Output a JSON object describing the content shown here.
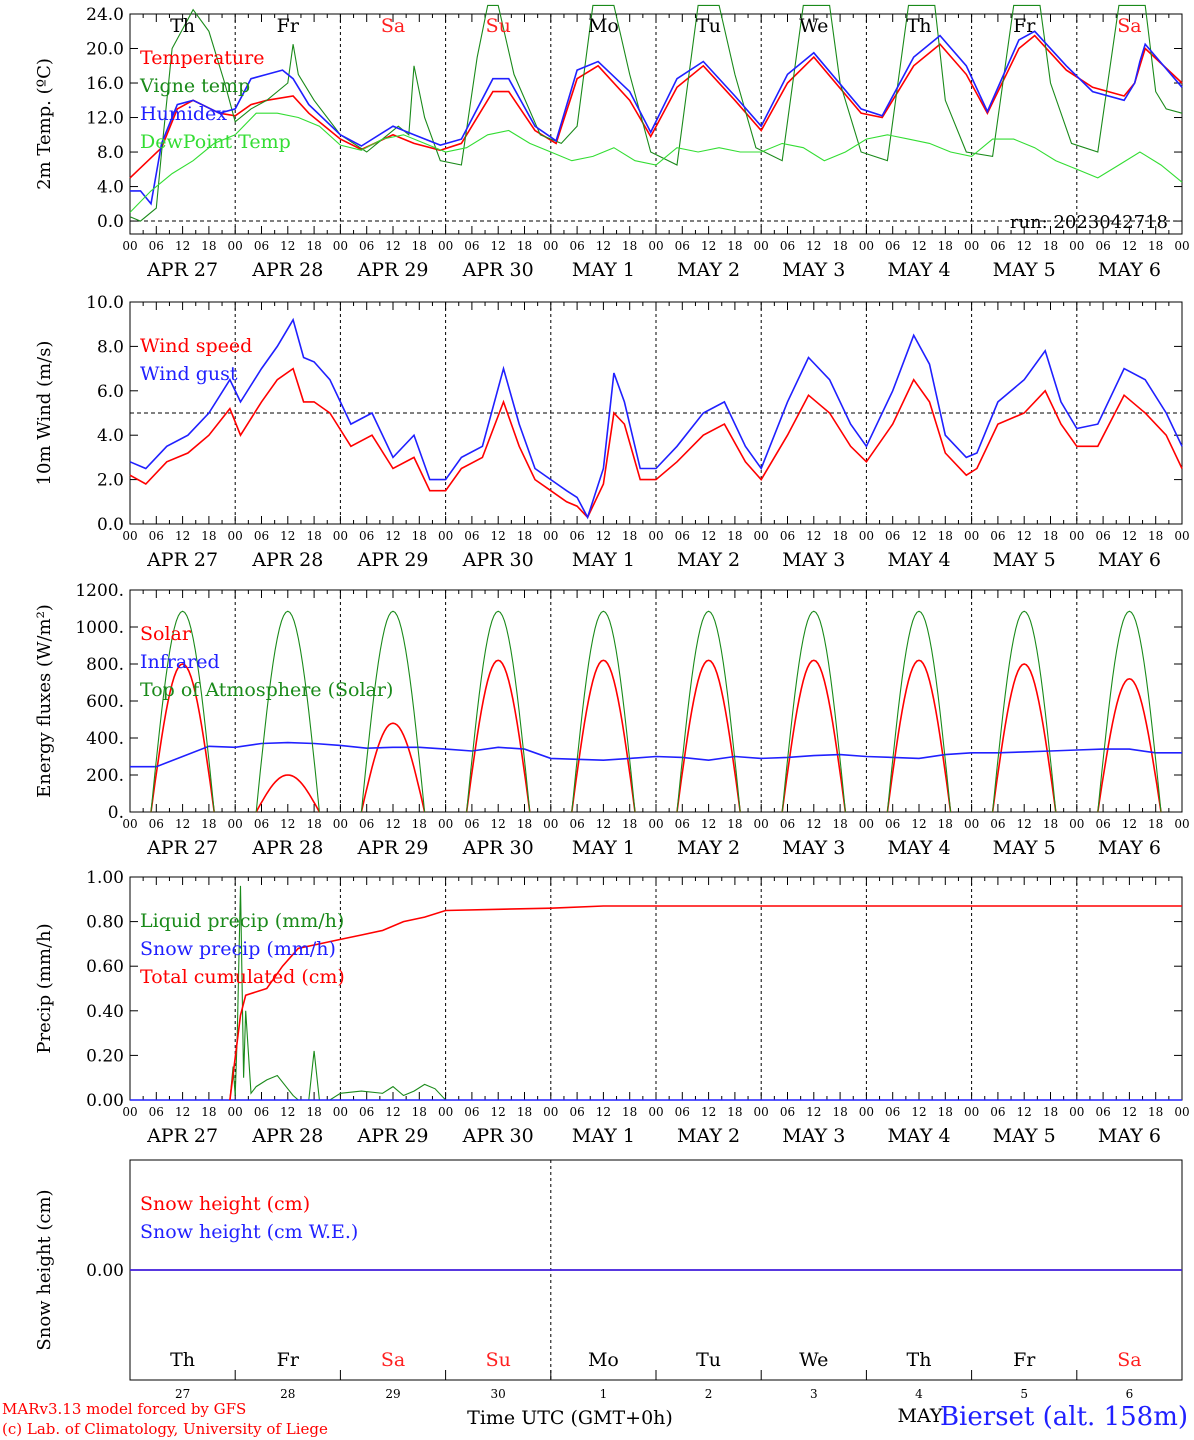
{
  "credits": {
    "line1": "MARv3.13 model forced by GFS",
    "line2": "(c) Lab. of Climatology, University of Liege"
  },
  "station": "Bierset (alt. 158m)",
  "run_label": "run: 2023042718",
  "days": {
    "weekdays": [
      "Th",
      "Fr",
      "Sa",
      "Su",
      "Mo",
      "Tu",
      "We",
      "Th",
      "Fr",
      "Sa"
    ],
    "weekend_flags": [
      false,
      false,
      true,
      true,
      false,
      false,
      false,
      false,
      false,
      true
    ],
    "date_labels": [
      "APR 27",
      "APR 28",
      "APR 29",
      "APR 30",
      "MAY  1",
      "MAY  2",
      "MAY  3",
      "MAY  4",
      "MAY  5",
      "MAY  6"
    ],
    "day_numbers": [
      "27",
      "28",
      "29",
      "30",
      "1",
      "2",
      "3",
      "4",
      "5",
      "6"
    ],
    "hour_ticks": [
      "00",
      "06",
      "12",
      "18"
    ],
    "final_tick": "00"
  },
  "colors": {
    "red": "#ff0000",
    "blue": "#2020ff",
    "green": "#1a8a1a",
    "lightgreen": "#33dd33",
    "purple": "#7030a0",
    "weekend": "#ff2020"
  },
  "chart_data": [
    {
      "id": "temp",
      "type": "line",
      "ylabel": "2m Temp. (ºC)",
      "ylim": [
        -1.5,
        24
      ],
      "yticks": [
        0,
        4,
        8,
        12,
        16,
        20,
        24
      ],
      "ytick_labels": [
        "0.0",
        "4.0",
        "8.0",
        "12.0",
        "16.0",
        "20.0",
        "24.0"
      ],
      "reference_line": 0,
      "x_unit": "days since APR 27 00 UTC",
      "series": [
        {
          "name": "Temperature",
          "color": "red",
          "x": [
            0,
            0.3,
            0.45,
            0.6,
            0.85,
            1.0,
            1.15,
            1.3,
            1.55,
            1.7,
            2.0,
            2.2,
            2.5,
            2.7,
            2.95,
            3.15,
            3.45,
            3.6,
            3.85,
            4.05,
            4.25,
            4.45,
            4.75,
            4.95,
            5.2,
            5.45,
            5.75,
            6.0,
            6.25,
            6.5,
            6.95,
            7.15,
            7.45,
            7.7,
            7.95,
            8.15,
            8.45,
            8.6,
            8.9,
            9.15,
            9.45,
            9.55,
            9.6,
            9.65,
            10.0
          ],
          "y": [
            5.0,
            8.5,
            13.0,
            14.0,
            12.5,
            12.2,
            13.5,
            14.0,
            14.5,
            12.5,
            9.5,
            8.3,
            10.0,
            9.0,
            8.2,
            9.0,
            15.0,
            15.0,
            10.5,
            9.0,
            16.5,
            18.0,
            14.0,
            9.8,
            15.5,
            18.0,
            14.0,
            10.5,
            16.0,
            19.0,
            12.5,
            12.0,
            18.0,
            20.5,
            17.0,
            12.5,
            20.0,
            21.5,
            17.5,
            15.5,
            14.5,
            16.0,
            18.0,
            20.0,
            16.0
          ]
        },
        {
          "name": "Vigne temp",
          "color": "green",
          "x": [
            0,
            0.1,
            0.25,
            0.3,
            0.4,
            0.6,
            0.75,
            0.9,
            1.0,
            1.15,
            1.3,
            1.5,
            1.55,
            1.6,
            1.75,
            2.0,
            2.25,
            2.4,
            2.55,
            2.65,
            2.7,
            2.8,
            2.95,
            3.15,
            3.3,
            3.4,
            3.5,
            3.65,
            3.9,
            4.1,
            4.25,
            4.4,
            4.6,
            4.75,
            4.95,
            5.2,
            5.4,
            5.6,
            5.75,
            5.95,
            6.2,
            6.4,
            6.65,
            6.75,
            6.95,
            7.2,
            7.4,
            7.65,
            7.75,
            7.95,
            8.2,
            8.4,
            8.65,
            8.75,
            8.95,
            9.2,
            9.4,
            9.65,
            9.75,
            9.85,
            10.0
          ],
          "y": [
            0.5,
            0.0,
            1.5,
            8.0,
            20.0,
            24.5,
            22.0,
            16.0,
            11.5,
            13.0,
            14.0,
            16.0,
            20.5,
            17.0,
            14.0,
            10.0,
            8.0,
            9.5,
            11.0,
            10.0,
            18.0,
            12.0,
            7.0,
            6.5,
            19.0,
            25.0,
            25.0,
            17.0,
            10.0,
            9.0,
            11.0,
            25.0,
            25.0,
            17.0,
            8.0,
            6.5,
            25.0,
            25.0,
            17.0,
            8.5,
            7.0,
            25.0,
            25.0,
            16.0,
            8.0,
            7.0,
            25.0,
            25.0,
            14.0,
            8.0,
            7.5,
            25.0,
            25.0,
            16.0,
            9.0,
            8.0,
            25.0,
            25.0,
            15.0,
            13.0,
            12.5
          ]
        },
        {
          "name": "Humidex",
          "color": "blue",
          "x": [
            0,
            0.1,
            0.2,
            0.3,
            0.45,
            0.6,
            0.85,
            1.0,
            1.15,
            1.3,
            1.45,
            1.55,
            1.7,
            2.0,
            2.2,
            2.5,
            2.7,
            2.95,
            3.15,
            3.45,
            3.6,
            3.85,
            4.05,
            4.25,
            4.45,
            4.75,
            4.95,
            5.2,
            5.45,
            5.75,
            6.0,
            6.25,
            6.5,
            6.95,
            7.15,
            7.45,
            7.7,
            7.95,
            8.15,
            8.45,
            8.6,
            8.9,
            9.15,
            9.45,
            9.55,
            9.6,
            9.65,
            10.0
          ],
          "y": [
            3.5,
            3.5,
            2.0,
            9.0,
            13.5,
            14.0,
            12.5,
            13.0,
            16.5,
            17.0,
            17.5,
            16.5,
            13.5,
            10.0,
            8.7,
            11.0,
            10.0,
            8.8,
            9.5,
            16.5,
            16.5,
            11.0,
            9.3,
            17.5,
            18.5,
            15.0,
            10.3,
            16.5,
            18.5,
            14.5,
            11.0,
            17.0,
            19.5,
            13.0,
            12.2,
            19.0,
            21.5,
            18.0,
            12.7,
            21.0,
            22.0,
            18.0,
            15.0,
            14.0,
            16.0,
            18.5,
            20.5,
            15.5
          ]
        },
        {
          "name": "DewPoint Temp",
          "color": "lightgreen",
          "x": [
            0,
            0.2,
            0.4,
            0.6,
            0.8,
            1.0,
            1.2,
            1.4,
            1.6,
            1.8,
            2.0,
            2.2,
            2.4,
            2.6,
            2.8,
            3.0,
            3.2,
            3.4,
            3.6,
            3.8,
            4.0,
            4.2,
            4.4,
            4.6,
            4.8,
            5.0,
            5.2,
            5.4,
            5.6,
            5.8,
            6.0,
            6.2,
            6.4,
            6.6,
            6.8,
            7.0,
            7.2,
            7.4,
            7.6,
            7.8,
            8.0,
            8.2,
            8.4,
            8.6,
            8.8,
            9.0,
            9.2,
            9.4,
            9.6,
            9.8,
            10.0
          ],
          "y": [
            1.0,
            3.5,
            5.5,
            7.0,
            9.0,
            10.0,
            12.5,
            12.5,
            12.0,
            11.0,
            8.8,
            8.2,
            9.5,
            10.0,
            9.0,
            8.0,
            8.5,
            10.0,
            10.5,
            9.0,
            8.0,
            7.0,
            7.5,
            8.5,
            7.0,
            6.5,
            8.5,
            8.0,
            8.5,
            8.0,
            8.0,
            9.0,
            8.5,
            7.0,
            8.0,
            9.5,
            10.0,
            9.5,
            9.0,
            8.0,
            7.5,
            9.5,
            9.5,
            8.5,
            7.0,
            6.0,
            5.0,
            6.5,
            8.0,
            6.5,
            4.5
          ]
        }
      ]
    },
    {
      "id": "wind",
      "type": "line",
      "ylabel": "10m Wind (m/s)",
      "ylim": [
        0,
        10
      ],
      "yticks": [
        0,
        2,
        4,
        6,
        8,
        10
      ],
      "ytick_labels": [
        "0.0",
        "2.0",
        "4.0",
        "6.0",
        "8.0",
        "10.0"
      ],
      "reference_line": 5,
      "x_unit": "days since APR 27 00 UTC",
      "series": [
        {
          "name": "Wind speed",
          "color": "red",
          "x": [
            0,
            0.15,
            0.35,
            0.55,
            0.75,
            0.95,
            1.05,
            1.25,
            1.4,
            1.55,
            1.65,
            1.75,
            1.9,
            2.1,
            2.3,
            2.5,
            2.7,
            2.85,
            3.0,
            3.15,
            3.35,
            3.55,
            3.7,
            3.85,
            4.0,
            4.15,
            4.25,
            4.35,
            4.5,
            4.6,
            4.7,
            4.85,
            5.0,
            5.2,
            5.45,
            5.65,
            5.85,
            6.0,
            6.25,
            6.45,
            6.65,
            6.85,
            7.0,
            7.25,
            7.45,
            7.6,
            7.75,
            7.95,
            8.05,
            8.25,
            8.5,
            8.7,
            8.85,
            9.0,
            9.2,
            9.45,
            9.65,
            9.85,
            10.0
          ],
          "y": [
            2.2,
            1.8,
            2.8,
            3.2,
            4.0,
            5.2,
            4.0,
            5.5,
            6.5,
            7.0,
            5.5,
            5.5,
            5.0,
            3.5,
            4.0,
            2.5,
            3.0,
            1.5,
            1.5,
            2.5,
            3.0,
            5.5,
            3.5,
            2.0,
            1.5,
            1.0,
            0.8,
            0.3,
            1.8,
            5.0,
            4.5,
            2.0,
            2.0,
            2.8,
            4.0,
            4.5,
            2.8,
            2.0,
            4.0,
            5.8,
            5.0,
            3.5,
            2.8,
            4.5,
            6.5,
            5.5,
            3.2,
            2.2,
            2.5,
            4.5,
            5.0,
            6.0,
            4.5,
            3.5,
            3.5,
            5.8,
            5.0,
            4.0,
            2.5
          ]
        },
        {
          "name": "Wind gust",
          "color": "blue",
          "x": [
            0,
            0.15,
            0.35,
            0.55,
            0.75,
            0.95,
            1.05,
            1.25,
            1.4,
            1.55,
            1.65,
            1.75,
            1.9,
            2.1,
            2.3,
            2.5,
            2.7,
            2.85,
            3.0,
            3.15,
            3.35,
            3.55,
            3.7,
            3.85,
            4.0,
            4.15,
            4.25,
            4.35,
            4.5,
            4.6,
            4.7,
            4.85,
            5.0,
            5.2,
            5.45,
            5.65,
            5.85,
            6.0,
            6.25,
            6.45,
            6.65,
            6.85,
            7.0,
            7.25,
            7.45,
            7.6,
            7.75,
            7.95,
            8.05,
            8.25,
            8.5,
            8.7,
            8.85,
            9.0,
            9.2,
            9.45,
            9.65,
            9.85,
            10.0
          ],
          "y": [
            2.8,
            2.5,
            3.5,
            4.0,
            5.0,
            6.5,
            5.5,
            7.0,
            8.0,
            9.2,
            7.5,
            7.3,
            6.5,
            4.5,
            5.0,
            3.0,
            4.0,
            2.0,
            2.0,
            3.0,
            3.5,
            7.0,
            4.5,
            2.5,
            2.0,
            1.5,
            1.2,
            0.3,
            2.5,
            6.8,
            5.5,
            2.5,
            2.5,
            3.5,
            5.0,
            5.5,
            3.5,
            2.5,
            5.5,
            7.5,
            6.5,
            4.5,
            3.5,
            6.0,
            8.5,
            7.2,
            4.0,
            3.0,
            3.2,
            5.5,
            6.5,
            7.8,
            5.5,
            4.3,
            4.5,
            7.0,
            6.5,
            5.0,
            3.5
          ]
        }
      ]
    },
    {
      "id": "energy",
      "type": "line",
      "ylabel": "Energy fluxes (W/m²)",
      "ylim": [
        0,
        1200
      ],
      "yticks": [
        0,
        200,
        400,
        600,
        800,
        1000,
        1200
      ],
      "ytick_labels": [
        "0.",
        "200.",
        "400.",
        "600.",
        "800.",
        "1000.",
        "1200."
      ],
      "x_unit": "days since APR 27 00 UTC",
      "series": [
        {
          "name": "Solar",
          "color": "red",
          "peaks": [
            800,
            200,
            480,
            820,
            820,
            820,
            820,
            820,
            800,
            720
          ]
        },
        {
          "name": "Infrared",
          "color": "blue",
          "x": [
            0,
            0.25,
            0.5,
            0.75,
            1.0,
            1.25,
            1.5,
            1.75,
            2.0,
            2.25,
            2.5,
            2.75,
            3.0,
            3.25,
            3.5,
            3.75,
            4.0,
            4.25,
            4.5,
            4.75,
            5.0,
            5.25,
            5.5,
            5.75,
            6.0,
            6.25,
            6.5,
            6.75,
            7.0,
            7.25,
            7.5,
            7.75,
            8.0,
            8.25,
            8.5,
            8.75,
            9.0,
            9.25,
            9.5,
            9.75,
            10.0
          ],
          "y": [
            245,
            245,
            300,
            355,
            350,
            370,
            375,
            370,
            360,
            345,
            350,
            350,
            340,
            330,
            350,
            340,
            290,
            285,
            280,
            290,
            300,
            295,
            280,
            300,
            290,
            295,
            305,
            310,
            300,
            295,
            290,
            310,
            320,
            320,
            325,
            330,
            335,
            340,
            340,
            320,
            320
          ]
        },
        {
          "name": "Top of Atmosphere (Solar)",
          "color": "green",
          "peak": 1085
        }
      ]
    },
    {
      "id": "precip",
      "type": "line",
      "ylabel": "Precip (mm/h)",
      "ylim": [
        0,
        1.0
      ],
      "yticks": [
        0,
        0.2,
        0.4,
        0.6,
        0.8,
        1.0
      ],
      "ytick_labels": [
        "0.00",
        "0.20",
        "0.40",
        "0.60",
        "0.80",
        "1.00"
      ],
      "x_unit": "days since APR 27 00 UTC",
      "series": [
        {
          "name": "Liquid precip (mm/h)",
          "color": "green",
          "x": [
            0.95,
            0.98,
            1.0,
            1.02,
            1.05,
            1.08,
            1.1,
            1.15,
            1.2,
            1.3,
            1.4,
            1.5,
            1.55,
            1.6,
            1.7,
            1.75,
            1.8,
            1.85,
            1.9,
            2.0,
            2.2,
            2.4,
            2.5,
            2.6,
            2.7,
            2.8,
            2.9,
            3.0,
            3.05
          ],
          "y": [
            0,
            0.15,
            0.02,
            0.3,
            0.96,
            0.1,
            0.4,
            0.03,
            0.06,
            0.09,
            0.11,
            0.05,
            0.02,
            0,
            0,
            0.22,
            0,
            0,
            0,
            0.03,
            0.04,
            0.03,
            0.06,
            0.02,
            0.04,
            0.07,
            0.05,
            0,
            0
          ]
        },
        {
          "name": "Snow precip (mm/h)",
          "color": "blue",
          "x": [
            0,
            10
          ],
          "y": [
            0,
            0
          ]
        },
        {
          "name": "Total cumulated (cm)",
          "color": "red",
          "x": [
            0.95,
            1.05,
            1.1,
            1.3,
            1.45,
            1.6,
            1.8,
            2.0,
            2.2,
            2.4,
            2.6,
            2.8,
            3.0,
            3.5,
            4.0,
            4.5,
            5.0,
            10.0
          ],
          "y": [
            0,
            0.38,
            0.47,
            0.5,
            0.6,
            0.68,
            0.7,
            0.72,
            0.74,
            0.76,
            0.8,
            0.82,
            0.85,
            0.855,
            0.86,
            0.87,
            0.87,
            0.87
          ]
        }
      ]
    },
    {
      "id": "snow",
      "type": "line",
      "ylabel": "Snow height (cm)",
      "ylim": [
        -1,
        1
      ],
      "yticks": [
        0
      ],
      "ytick_labels": [
        "0.00"
      ],
      "x_unit": "days since APR 27 00 UTC",
      "xlabel": "Time UTC (GMT+0h)",
      "month_label": "MAY",
      "series": [
        {
          "name": "Snow height (cm)",
          "color": "red",
          "x": [
            0,
            10
          ],
          "y": [
            0,
            0
          ]
        },
        {
          "name": "Snow height (cm W.E.)",
          "color": "blue",
          "x": [
            0,
            10
          ],
          "y": [
            0,
            0
          ]
        }
      ]
    }
  ]
}
